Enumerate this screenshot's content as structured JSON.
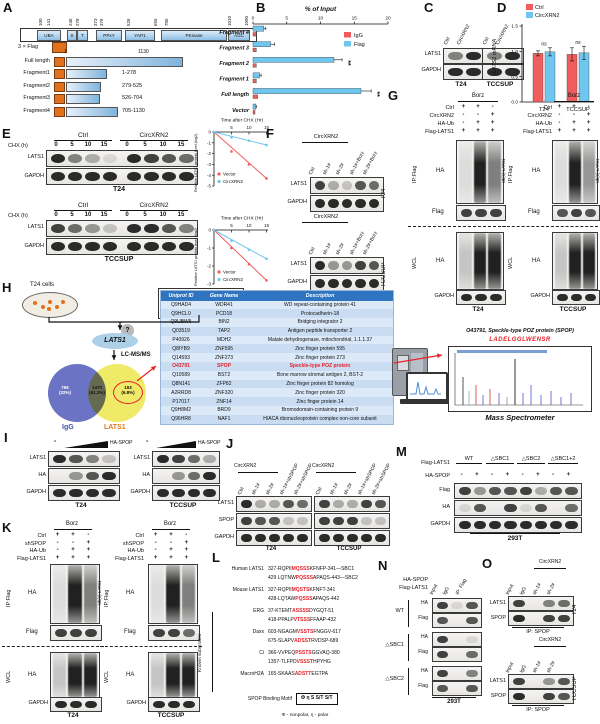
{
  "colors": {
    "red": "#F15C5C",
    "blue": "#6FC7EF",
    "red_text": "#E8222A",
    "orange": "#E2711D",
    "table_header": "#2F74C0",
    "venn_blue": "#6B74C4",
    "venn_yellow": "#F0EA69",
    "igg_label": "#3A50B0",
    "lats1_label": "#E07820"
  },
  "proteins": {
    "lats1": "LATS1",
    "gapdh": "GAPDH",
    "ha": "HA",
    "flag": "Flag",
    "spop": "SPOP"
  },
  "cells": {
    "t24": "T24",
    "tccsup": "TCCSUP",
    "t293": "293T"
  },
  "panels": {
    "A": {
      "label": "A",
      "ticks": [
        "100",
        "141",
        "246",
        "278",
        "373",
        "376",
        "526",
        "655",
        "705",
        "1010",
        "1090"
      ],
      "domains": [
        "UBA",
        "S",
        "T",
        "PPxY",
        "YAP1",
        "PKinase",
        "AGC"
      ],
      "flag_label": "3 × Flag",
      "fl_name": "Full length",
      "fl_start": "1",
      "fl_end": "1130",
      "fragments": [
        {
          "name": "Fragment1",
          "range": "1-278"
        },
        {
          "name": "Fragment2",
          "range": "279-525"
        },
        {
          "name": "Fragment3",
          "range": "526-704"
        },
        {
          "name": "Fragment4",
          "range": "705-1130"
        }
      ]
    },
    "B": {
      "label": "B"
    },
    "C": {
      "label": "C",
      "lanes": [
        "Ctrl",
        "CircXRN2"
      ]
    },
    "D": {
      "label": "D"
    },
    "E": {
      "label": "E",
      "chx": "CHX (h)",
      "groups": [
        "Ctrl",
        "CircXRN2"
      ],
      "times": [
        "0",
        "5",
        "10",
        "15"
      ]
    },
    "F": {
      "label": "F",
      "header": "CircXRN2",
      "lanes": [
        "Ctrl",
        "sh-1#",
        "sh-2#",
        "sh-1#+Borz",
        "sh-2#+Borz"
      ]
    },
    "G": {
      "label": "G",
      "borz": "Borz",
      "ip": "IP:Flag",
      "wcl": "WCL",
      "ub": "Ub(n)-LATS1",
      "conditions": [
        {
          "label": "Ctrl",
          "v": [
            "+",
            "+",
            "-"
          ]
        },
        {
          "label": "CircXRN2",
          "v": [
            "-",
            "-",
            "+"
          ]
        },
        {
          "label": "HA-Ub",
          "v": [
            "-",
            "+",
            "+"
          ]
        },
        {
          "label": "Flag-LATS1",
          "v": [
            "+",
            "+",
            "+"
          ]
        }
      ]
    },
    "H": {
      "label": "H",
      "cells_label": "T24 cells",
      "antibody_line1": "LATS1 or IgG",
      "antibody_line2": "Antibody",
      "question": "?",
      "lats1": "LATS1",
      "lcms": "LC-MS/MS",
      "venn": [
        {
          "n": "766",
          "p": "(32%)"
        },
        {
          "n": "1470",
          "p": "(61.2%)"
        },
        {
          "n": "163",
          "p": "(6.8%)"
        }
      ],
      "venn_left_label": "IgG",
      "venn_right_label": "LATS1",
      "table": {
        "headers": [
          "Uniprot ID",
          "Gene Name",
          "Description"
        ],
        "highlight": 7,
        "rows": [
          [
            "Q9HAD4",
            "WDR41",
            "WD repeat-containing protein 41"
          ],
          [
            "Q9HCL0",
            "PCD18",
            "Protocadherin-18"
          ],
          [
            "Q9UBW5",
            "BIN2",
            "Bridging integrator 2"
          ],
          [
            "Q03519",
            "TAP2",
            "Antigen peptide transporter 2"
          ],
          [
            "P40926",
            "MDH2",
            "Malate dehydrogenase, mitochondrial, 1.1.1.37"
          ],
          [
            "Q8IYB9",
            "ZNF595",
            "Zinc finger protein 595"
          ],
          [
            "Q14593",
            "ZNF273",
            "Zinc finger protein 273"
          ],
          [
            "O43791",
            "SPOP",
            "Speckle-type POZ protein"
          ],
          [
            "Q10589",
            "BST2",
            "Bone marrow stromal antigen 2, BST-2"
          ],
          [
            "Q8N141",
            "ZFP82",
            "Zinc finger protein 82 homolog"
          ],
          [
            "A2RRD8",
            "ZNF320",
            "Zinc finger protein 320"
          ],
          [
            "P17017",
            "ZNF14",
            "Zinc finger protein 14"
          ],
          [
            "Q9H8M2",
            "BRD9",
            "Bromodomain-containing protein 9"
          ],
          [
            "Q96HR8",
            "NAF1",
            "H/ACA ribonucleoprotein complex non-core subunit"
          ]
        ]
      },
      "spop_title": "O43791, Speckle-type POZ protein (SPOP)",
      "peptide": "LADELGGLWENSR",
      "ms_label": "Mass Spectrometer"
    },
    "I": {
      "label": "I",
      "minus": "-",
      "ha_spop": "HA-SPOP"
    },
    "J": {
      "label": "J",
      "header": "CircXRN2",
      "lanes": [
        "Ctrl",
        "sh-1#",
        "sh-2#",
        "sh-1#+shSPOP",
        "sh-2#+shSPOP"
      ]
    },
    "K": {
      "label": "K",
      "borz": "Borz",
      "ip": "IP:Flag",
      "wcl": "WCL",
      "ub": "Ub(n)-LATS1",
      "conditions": [
        {
          "label": "Ctrl",
          "v": [
            "+",
            "+",
            "-"
          ]
        },
        {
          "label": "shSPOP",
          "v": [
            "-",
            "-",
            "+"
          ]
        },
        {
          "label": "HA-Ub",
          "v": [
            "-",
            "+",
            "+"
          ]
        },
        {
          "label": "Flag-LATS1",
          "v": [
            "+",
            "+",
            "+"
          ]
        }
      ]
    },
    "L": {
      "label": "L",
      "known": "Known substrates",
      "motif_label": "SPOP Binding Motif",
      "motif_box": "Φ η S S/T S/T",
      "note": "Φ - nonpolar, η - polar",
      "rows": [
        {
          "label": "Human LATS1",
          "seqs": [
            {
              "pre": "327-RQPII",
              "motif": "MQSSS",
              "post": "KFNFP-341—SBC1"
            },
            {
              "pre": "429 LQTNW",
              "motif": "PQSSS",
              "post": "APAQS-443—SBC2"
            }
          ]
        },
        {
          "label": "Mouse LATS1",
          "seqs": [
            {
              "pre": "327-RQPII",
              "motif": "MQSTS",
              "post": "KFNFT-341"
            },
            {
              "pre": "428-LQTAW",
              "motif": "PQSSS",
              "post": "APAQS-442"
            }
          ]
        },
        {
          "label": "ERG",
          "seqs": [
            {
              "pre": "37-KTEMT",
              "motif": "ASSSS",
              "post": "DYGQT-51"
            },
            {
              "pre": "418-PPALP",
              "motif": "VTSSS",
              "post": "FFAAP-432"
            }
          ]
        },
        {
          "label": "Daxx",
          "seqs": [
            {
              "pre": "603-NGAGM",
              "motif": "VSSTS",
              "post": "FNGGV-617"
            },
            {
              "pre": "675-SLAPV",
              "motif": "ADSST",
              "post": "RVDSP-689"
            }
          ]
        },
        {
          "label": "Ci",
          "seqs": [
            {
              "pre": "366-VVPEQ",
              "motif": "PSSTS",
              "post": "GGVAQ-380"
            },
            {
              "pre": "1357-TLFPD",
              "motif": "VSSST",
              "post": "HPYHG"
            }
          ]
        },
        {
          "label": "MacroH2A",
          "seqs": [
            {
              "pre": "165-SKAAS",
              "motif": "ADSTT",
              "post": "EGTPA"
            }
          ]
        }
      ]
    },
    "M": {
      "label": "M",
      "flag_lats1": "Flag-LATS1",
      "ha_spop": "HA-SPOP",
      "groups": [
        "WT",
        "△SBC1",
        "△SBC2",
        "△SBC1+2"
      ],
      "pm": [
        "-",
        "+",
        "-",
        "+",
        "-",
        "+",
        "-",
        "+"
      ]
    },
    "N": {
      "label": "N",
      "ha_spop": "HA-SPOP",
      "flag_lats1": "Flag-LATS1",
      "lanes": [
        "Input",
        "IgG",
        "IP: Flag"
      ],
      "groups": [
        "WT",
        "△SBC1",
        "△SBC2"
      ]
    },
    "O": {
      "label": "O",
      "header": "CircXRN2",
      "lanes": [
        "Input",
        "IgG",
        "sh-1#",
        "sh-2#"
      ],
      "ip": "IP: SPOP"
    }
  },
  "chart_data": [
    {
      "id": "chartB",
      "type": "bar",
      "orientation": "horizontal",
      "title": "% of Input",
      "categories": [
        "Fragment 4",
        "Fragment 3",
        "Fragment 2",
        "Fragment 1",
        "Full length",
        "Vector"
      ],
      "series": [
        {
          "name": "Flag",
          "color": "#6FC7EF",
          "values": [
            1.6,
            2.6,
            12.0,
            1.0,
            16.0,
            0.4
          ],
          "errors": [
            0.3,
            0.6,
            1.2,
            0.2,
            1.5,
            0.1
          ]
        },
        {
          "name": "IgG",
          "color": "#F15C5C",
          "values": [
            0.5,
            0.5,
            0.5,
            0.5,
            0.7,
            0.3
          ],
          "errors": [
            0.1,
            0.1,
            0.1,
            0.1,
            0.1,
            0.1
          ]
        }
      ],
      "sig": [
        "",
        "",
        "**",
        "",
        "**",
        ""
      ],
      "xlim": [
        0,
        20
      ],
      "xticks": [
        0,
        5,
        10,
        15,
        20
      ],
      "legend_position": "right"
    },
    {
      "id": "chartD",
      "type": "bar",
      "title": "",
      "ylabel": "LATS1 mRNA",
      "categories": [
        "T24",
        "TCCSUP"
      ],
      "series": [
        {
          "name": "Ctrl",
          "color": "#F15C5C",
          "values": [
            0.96,
            0.94
          ],
          "errors": [
            0.05,
            0.13
          ]
        },
        {
          "name": "CircXRN2",
          "color": "#6FC7EF",
          "values": [
            0.99,
            0.97
          ],
          "errors": [
            0.08,
            0.13
          ]
        }
      ],
      "annotations": [
        "ns",
        "ns"
      ],
      "ylim": [
        0,
        1.5
      ],
      "yticks": [
        0,
        0.5,
        1,
        1.5
      ]
    },
    {
      "id": "chartE1",
      "type": "line",
      "title": "Time after CHX (Hr)",
      "ylabel": "Relative LATS1 protein level (log2)",
      "x": [
        0,
        5,
        10,
        15
      ],
      "series": [
        {
          "name": "Vector",
          "color": "#F15C5C",
          "values": [
            0,
            -1.8,
            -3.0,
            -4.3
          ]
        },
        {
          "name": "CircXRN2",
          "color": "#6FC7EF",
          "values": [
            0,
            -0.5,
            -0.8,
            -1.2
          ]
        }
      ],
      "ylim": [
        -5,
        0
      ],
      "yticks": [
        0,
        -1,
        -2,
        -3,
        -4,
        -5
      ],
      "xticks": [
        5,
        10,
        15
      ],
      "legend_position": "bottom-left"
    },
    {
      "id": "chartE2",
      "type": "line",
      "title": "Time after CHX (Hr)",
      "ylabel": "Relative LATS1 protein level (log2)",
      "x": [
        0,
        5,
        10,
        15
      ],
      "series": [
        {
          "name": "Vector",
          "color": "#F15C5C",
          "values": [
            0,
            -1.0,
            -1.9,
            -2.8
          ]
        },
        {
          "name": "CircXRN2",
          "color": "#6FC7EF",
          "values": [
            0,
            -0.6,
            -1.1,
            -1.6
          ]
        }
      ],
      "ylim": [
        -3,
        0
      ],
      "yticks": [
        0,
        -1,
        -2,
        -3
      ],
      "xticks": [
        5,
        10,
        15
      ],
      "legend_position": "bottom-left"
    }
  ]
}
